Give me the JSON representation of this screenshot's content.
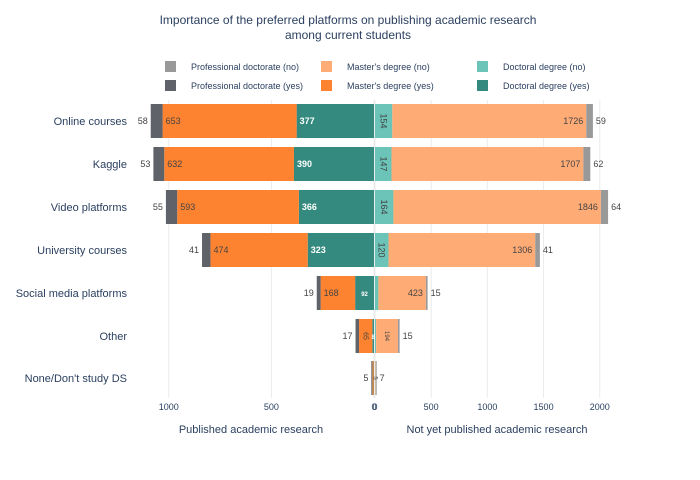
{
  "chart_data": {
    "type": "bar",
    "orientation": "horizontal-diverging",
    "title_line1": "Importance of the preferred platforms on publishing academic research",
    "title_line2": "among current students",
    "categories": [
      "Online courses",
      "Kaggle",
      "Video platforms",
      "University courses",
      "Social media platforms",
      "Other",
      "None/Don't study DS"
    ],
    "left_axis_title": "Published academic research",
    "right_axis_title": "Not yet published academic research",
    "left_ticks": [
      1000,
      500,
      0
    ],
    "right_ticks": [
      0,
      500,
      1000,
      1500,
      2000
    ],
    "left_range": [
      0,
      1150
    ],
    "right_range": [
      0,
      2100
    ],
    "legend": [
      {
        "name": "Professional doctorate (no)",
        "color": "#999999"
      },
      {
        "name": "Professional doctorate (yes)",
        "color": "#5f6369"
      },
      {
        "name": "Master's degree (no)",
        "color": "#ffab76"
      },
      {
        "name": "Master's degree (yes)",
        "color": "#fd8331"
      },
      {
        "name": "Doctoral degree (no)",
        "color": "#6cc3b8"
      },
      {
        "name": "Doctoral degree (yes)",
        "color": "#348a7e"
      }
    ],
    "published": {
      "doctoral_yes": [
        377,
        390,
        366,
        323,
        92,
        8,
        2
      ],
      "masters_yes": [
        653,
        632,
        593,
        474,
        168,
        65,
        6
      ],
      "professional_yes": [
        58,
        53,
        55,
        41,
        19,
        17,
        5
      ]
    },
    "not_published": {
      "doctoral_no": [
        154,
        147,
        164,
        120,
        30,
        10,
        3
      ],
      "masters_no": [
        1726,
        1707,
        1846,
        1306,
        423,
        194,
        5
      ],
      "professional_no": [
        59,
        62,
        64,
        41,
        15,
        15,
        7
      ]
    },
    "label_text": {
      "published": {
        "doctoral_yes": [
          "377",
          "390",
          "366",
          "323",
          "92",
          "8",
          ""
        ],
        "masters_yes": [
          "653",
          "632",
          "593",
          "474",
          "168",
          "65",
          ""
        ],
        "professional_yes": [
          "58",
          "53",
          "55",
          "41",
          "19",
          "17",
          "5"
        ]
      },
      "not_published": {
        "doctoral_no": [
          "154",
          "147",
          "164",
          "120",
          "",
          "",
          ""
        ],
        "masters_no": [
          "1726",
          "1707",
          "1846",
          "1306",
          "423",
          "194",
          "5"
        ],
        "professional_no": [
          "59",
          "62",
          "64",
          "41",
          "15",
          "15",
          "7"
        ]
      }
    }
  }
}
